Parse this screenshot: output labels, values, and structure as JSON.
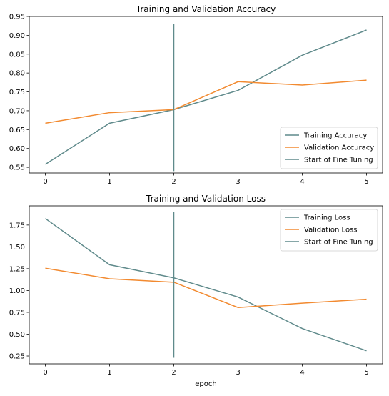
{
  "chart_data": [
    {
      "type": "line",
      "title": "Training and Validation Accuracy",
      "xlabel": "",
      "ylabel": "",
      "x": [
        0,
        1,
        2,
        3,
        4,
        5
      ],
      "xlim": [
        -0.25,
        5.25
      ],
      "ylim": [
        0.535,
        0.95
      ],
      "xticks": [
        0,
        1,
        2,
        3,
        4,
        5
      ],
      "yticks": [
        0.55,
        0.6,
        0.65,
        0.7,
        0.75,
        0.8,
        0.85,
        0.9,
        0.95
      ],
      "ytick_labels": [
        "0.55",
        "0.60",
        "0.65",
        "0.70",
        "0.75",
        "0.80",
        "0.85",
        "0.90",
        "0.95"
      ],
      "legend_position": "lower-right",
      "series": [
        {
          "name": "Training Accuracy",
          "color": "#5f8a8b",
          "values": [
            0.558,
            0.667,
            0.703,
            0.754,
            0.847,
            0.914
          ]
        },
        {
          "name": "Validation Accuracy",
          "color": "#f28a30",
          "values": [
            0.667,
            0.695,
            0.703,
            0.777,
            0.768,
            0.781
          ]
        }
      ],
      "vline": {
        "name": "Start of Fine Tuning",
        "color": "#5f8a8b",
        "x": 2,
        "y_range": [
          0.54,
          0.93
        ]
      }
    },
    {
      "type": "line",
      "title": "Training and Validation Loss",
      "xlabel": "epoch",
      "ylabel": "",
      "x": [
        0,
        1,
        2,
        3,
        4,
        5
      ],
      "xlim": [
        -0.25,
        5.25
      ],
      "ylim": [
        0.16,
        1.97
      ],
      "xticks": [
        0,
        1,
        2,
        3,
        4,
        5
      ],
      "yticks": [
        0.25,
        0.5,
        0.75,
        1.0,
        1.25,
        1.5,
        1.75
      ],
      "ytick_labels": [
        "0.25",
        "0.50",
        "0.75",
        "1.00",
        "1.25",
        "1.50",
        "1.75"
      ],
      "legend_position": "upper-right",
      "series": [
        {
          "name": "Training Loss",
          "color": "#5f8a8b",
          "values": [
            1.825,
            1.295,
            1.145,
            0.925,
            0.565,
            0.31
          ]
        },
        {
          "name": "Validation Loss",
          "color": "#f28a30",
          "values": [
            1.255,
            1.135,
            1.095,
            0.805,
            0.855,
            0.9
          ]
        }
      ],
      "vline": {
        "name": "Start of Fine Tuning",
        "color": "#5f8a8b",
        "x": 2,
        "y_range": [
          0.23,
          1.9
        ]
      }
    }
  ]
}
